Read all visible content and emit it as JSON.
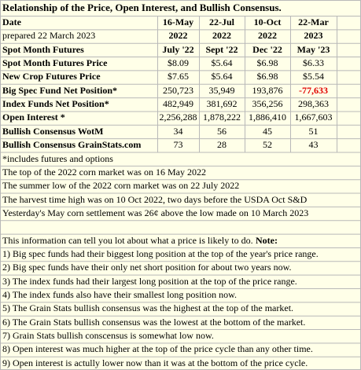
{
  "title": "Relationship of the Price, Open Interest, and Bullish Consensus.",
  "table": {
    "header": [
      [
        "Date",
        "16-May",
        "22-Jul",
        "10-Oct",
        "22-Mar"
      ],
      [
        "prepared 22 March 2023",
        "2022",
        "2022",
        "2022",
        "2023"
      ]
    ],
    "rows": [
      [
        "Spot Month Futures",
        "July '22",
        "Sept '22",
        "Dec '22",
        "May '23"
      ],
      [
        "Spot Month Futures Price",
        "$8.09",
        "$5.64",
        "$6.98",
        "$6.33"
      ],
      [
        "New Crop Futures Price",
        "$7.65",
        "$5.64",
        "$6.98",
        "$5.54"
      ],
      [
        "Big Spec Fund Net Position*",
        "250,723",
        "35,949",
        "193,876",
        "-77,633"
      ],
      [
        "Index Funds Net Position*",
        "482,949",
        "381,692",
        "356,256",
        "298,363"
      ],
      [
        "Open Interest *",
        "2,256,288",
        "1,878,222",
        "1,886,410",
        "1,667,603"
      ],
      [
        "Bullish Consensus WotM",
        "34",
        "56",
        "45",
        "51"
      ],
      [
        "Bullish Consensus GrainStats.com",
        "73",
        "28",
        "52",
        "43"
      ]
    ],
    "negative_color": "#e00000"
  },
  "footnote": "*includes futures and options",
  "notes": [
    "The top of the 2022 corn market was on 16 May 2022",
    "The summer low of the 2022 corn market was on 22 July 2022",
    "The harvest time high was on 10 Oct 2022, two days before the USDA Oct S&D",
    "Yesterday's May corn settlement was 26¢ above the low made on 10 March 2023"
  ],
  "intro": "This information can tell you lot about what a price is likely to do.",
  "intro_bold": "Note:",
  "points": [
    "1) Big spec funds had their biggest long position at the top of the year's price range.",
    "2)  Big spec funds have their only net short position for about two years now.",
    "3) The index funds had their largest long position at the top of the price range.",
    "4) The index funds also have their smallest long position now.",
    "5) The Grain Stats bullish consensus was the highest at the top of the market.",
    "6) The Grain Stats bullish consensus was the lowest at the bottom of the market.",
    "7) Grain Stats bullish conscensus is somewhat low now.",
    "8) Open interest was much higher at the top of the price cycle than any other time.",
    "9) Open interest is actully lower now than it was at the bottom of the price cycle."
  ]
}
